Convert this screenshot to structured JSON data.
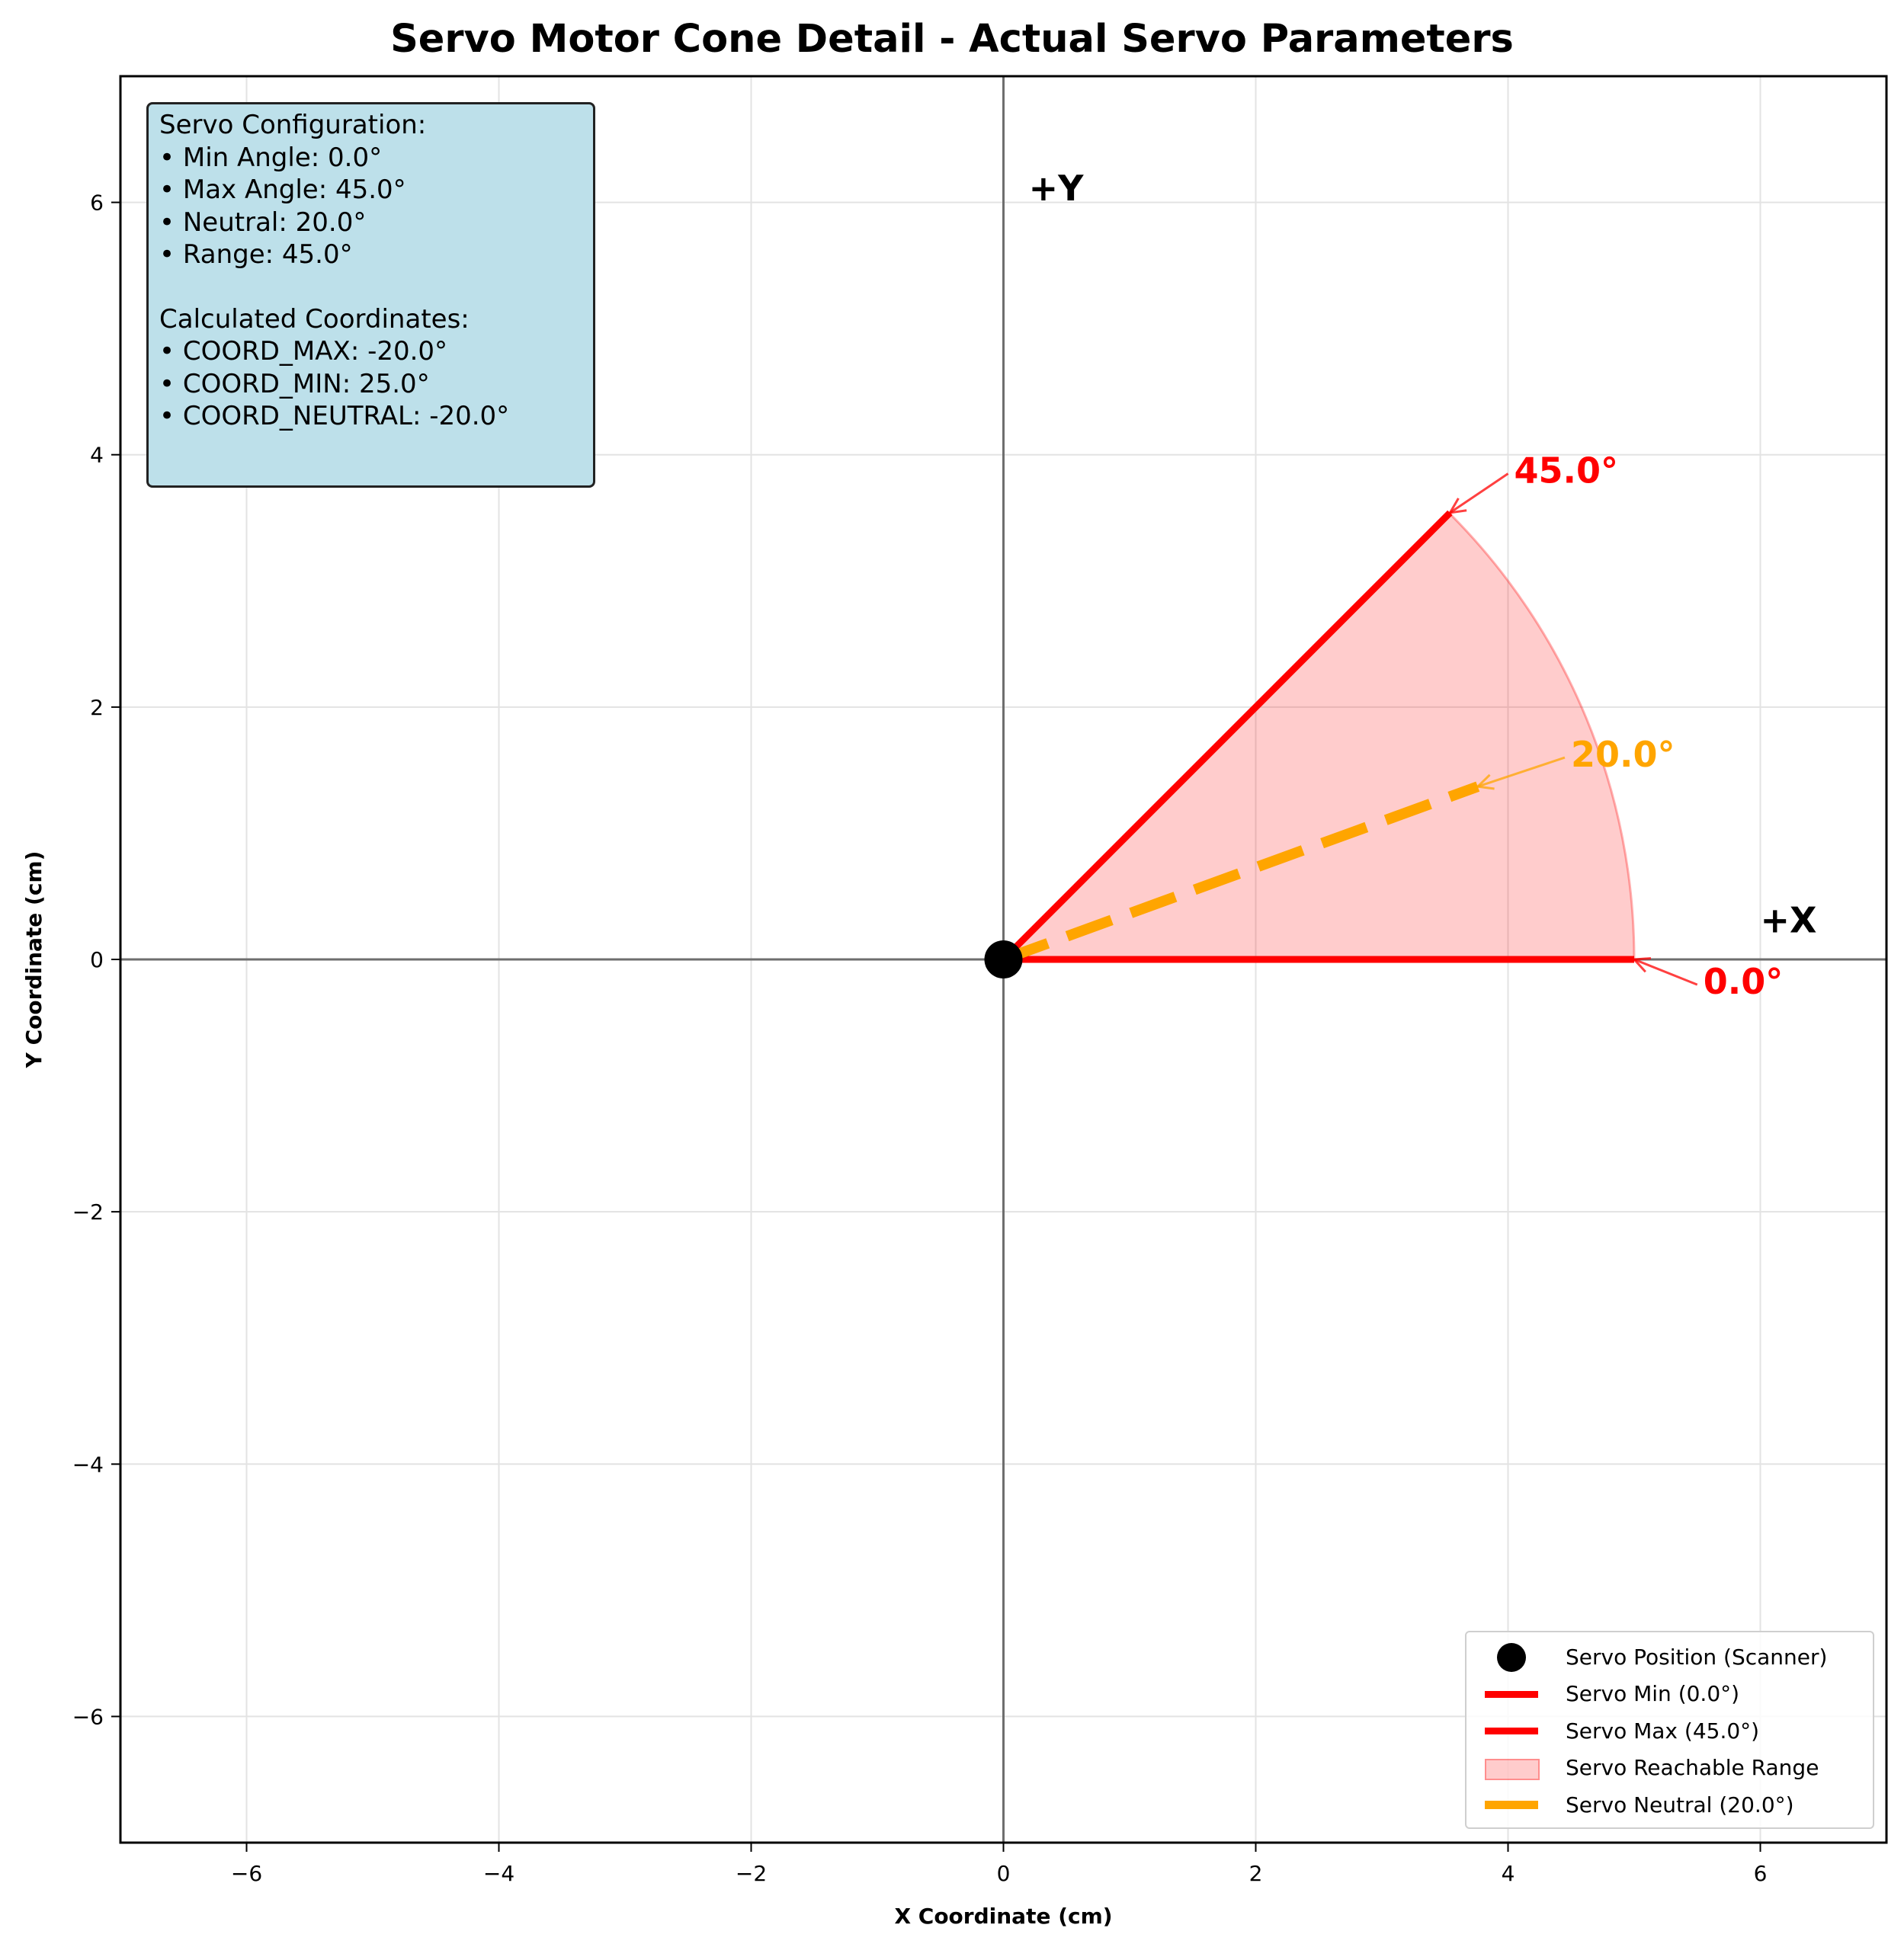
{
  "chart_data": {
    "type": "line",
    "title": "Servo Motor Cone Detail - Actual Servo Parameters",
    "xlabel": "X Coordinate (cm)",
    "ylabel": "Y Coordinate (cm)",
    "xlim": [
      -7,
      7
    ],
    "ylim": [
      -7,
      7
    ],
    "xticks": [
      -6,
      -4,
      -2,
      0,
      2,
      4,
      6
    ],
    "yticks": [
      -6,
      -4,
      -2,
      0,
      2,
      4,
      6
    ],
    "xtick_labels": [
      "−6",
      "−4",
      "−2",
      "0",
      "2",
      "4",
      "6"
    ],
    "ytick_labels": [
      "−6",
      "−4",
      "−2",
      "0",
      "2",
      "4",
      "6"
    ],
    "grid": true,
    "legend_position": "lower-right",
    "servo_position": {
      "x": 0,
      "y": 0
    },
    "cone_radius": 5,
    "min_angle_deg": 0.0,
    "max_angle_deg": 45.0,
    "neutral_angle_deg": 20.0,
    "colors": {
      "limits": "#ff0000",
      "neutral": "#ffa500",
      "range_fill": "#ff0000",
      "servo": "#000000"
    },
    "series": [
      {
        "name": "Servo Position (Scanner)",
        "type": "point",
        "x": [
          0
        ],
        "y": [
          0
        ]
      },
      {
        "name": "Servo Min (0.0°)",
        "type": "line",
        "x": [
          0,
          5.0
        ],
        "y": [
          0,
          0.0
        ]
      },
      {
        "name": "Servo Max (45.0°)",
        "type": "line",
        "x": [
          0,
          3.54
        ],
        "y": [
          0,
          3.54
        ]
      },
      {
        "name": "Servo Reachable Range",
        "type": "area",
        "theta_range_deg": [
          0,
          45
        ],
        "radius": 5
      },
      {
        "name": "Servo Neutral (20.0°)",
        "type": "dashed-line",
        "x": [
          0,
          3.76
        ],
        "y": [
          0,
          1.37
        ]
      }
    ],
    "annotations": [
      {
        "text": "45.0°",
        "color": "#ff0000",
        "x": 4.0,
        "y": 3.85,
        "arrow_to": [
          3.54,
          3.54
        ]
      },
      {
        "text": "20.0°",
        "color": "#ffa500",
        "x": 4.45,
        "y": 1.6,
        "arrow_to": [
          3.76,
          1.37
        ]
      },
      {
        "text": "0.0°",
        "color": "#ff0000",
        "x": 5.5,
        "y": -0.2,
        "arrow_to": [
          5.0,
          0.0
        ]
      },
      {
        "text": "+X",
        "color": "#000000",
        "x": 6.0,
        "y": 0.3
      },
      {
        "text": "+Y",
        "color": "#000000",
        "x": 0.2,
        "y": 6.1
      }
    ]
  },
  "info_box": {
    "lines": [
      "Servo Configuration:",
      "• Min Angle: 0.0°",
      "• Max Angle: 45.0°",
      "• Neutral: 20.0°",
      "• Range: 45.0°",
      "",
      "Calculated Coordinates:",
      "• COORD_MAX: -20.0°",
      "• COORD_MIN: 25.0°",
      "• COORD_NEUTRAL: -20.0°"
    ],
    "background": "#bde0ea"
  },
  "legend": {
    "items": [
      {
        "label": "Servo Position (Scanner)",
        "icon": "dot"
      },
      {
        "label": "Servo Min (0.0°)",
        "icon": "line"
      },
      {
        "label": "Servo Max (45.0°)",
        "icon": "line"
      },
      {
        "label": "Servo Reachable Range",
        "icon": "fill"
      },
      {
        "label": "Servo Neutral (20.0°)",
        "icon": "dash"
      }
    ]
  }
}
